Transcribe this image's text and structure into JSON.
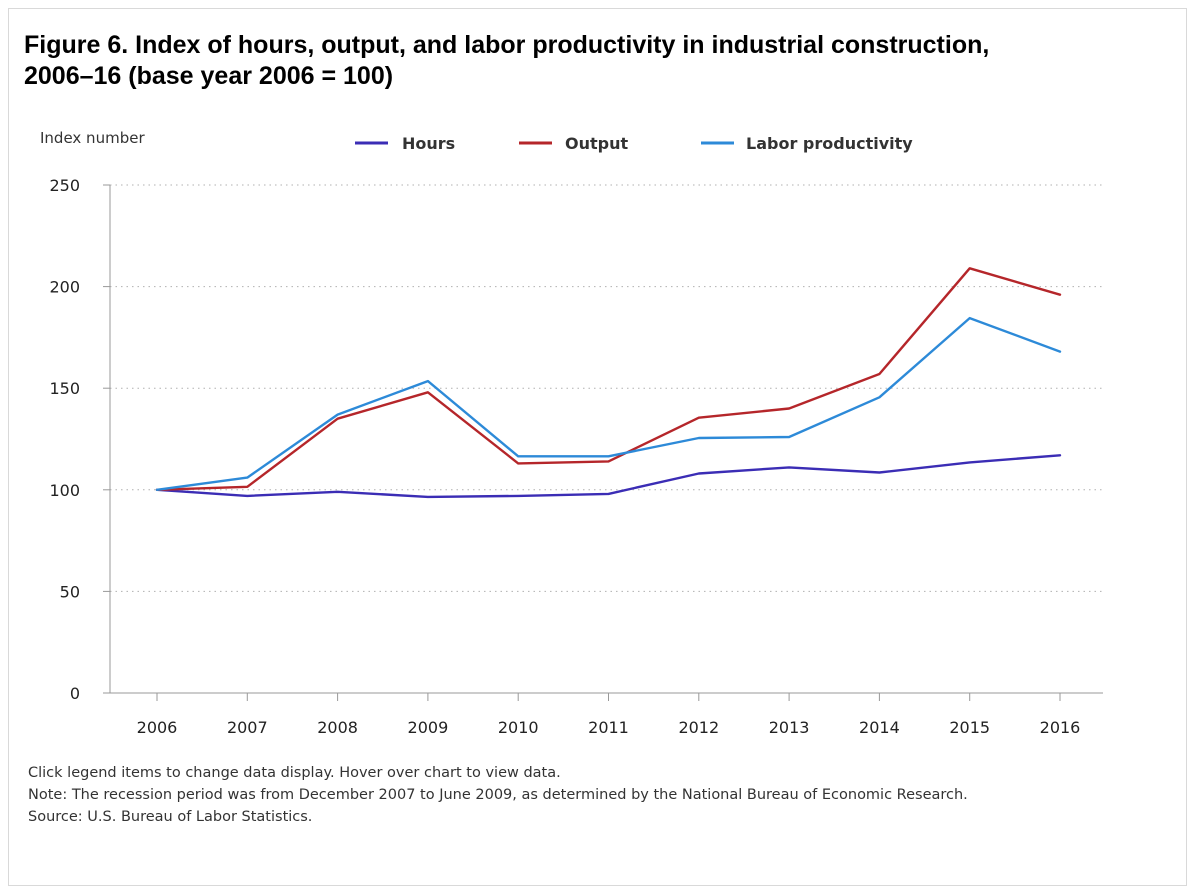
{
  "page": {
    "title": "Figure 6. Index of hours, output, and labor productivity in industrial construction, 2006–16 (base year 2006 = 100)",
    "notes": [
      "Click legend items to change data display. Hover over chart to view data.",
      "Note: The recession period was from December 2007 to June 2009, as determined by the National Bureau of Economic Research.",
      "Source: U.S. Bureau of Labor Statistics."
    ]
  },
  "chart_data": {
    "type": "line",
    "title": "Figure 6. Index of hours, output, and labor productivity in industrial construction, 2006–16 (base year 2006 = 100)",
    "ylabel": "Index number",
    "xlabel": "",
    "ylim": [
      0,
      250
    ],
    "yticks": [
      0,
      50,
      100,
      150,
      200,
      250
    ],
    "grid": "horizontal dotted",
    "legend_position": "top",
    "categories": [
      "2006",
      "2007",
      "2008",
      "2009",
      "2010",
      "2011",
      "2012",
      "2013",
      "2014",
      "2015",
      "2016"
    ],
    "series": [
      {
        "name": "Hours",
        "color": "#3b2db5",
        "values": [
          100,
          97,
          99,
          96.5,
          97,
          98,
          108,
          111,
          108.5,
          113.5,
          117
        ]
      },
      {
        "name": "Output",
        "color": "#b5262a",
        "values": [
          100,
          101.5,
          135,
          148,
          113,
          114,
          135.5,
          140,
          157,
          209,
          196
        ]
      },
      {
        "name": "Labor productivity",
        "color": "#2d8ad8",
        "values": [
          100,
          106,
          137,
          153.5,
          116.5,
          116.5,
          125.5,
          126,
          145.5,
          184.5,
          168
        ]
      }
    ]
  }
}
